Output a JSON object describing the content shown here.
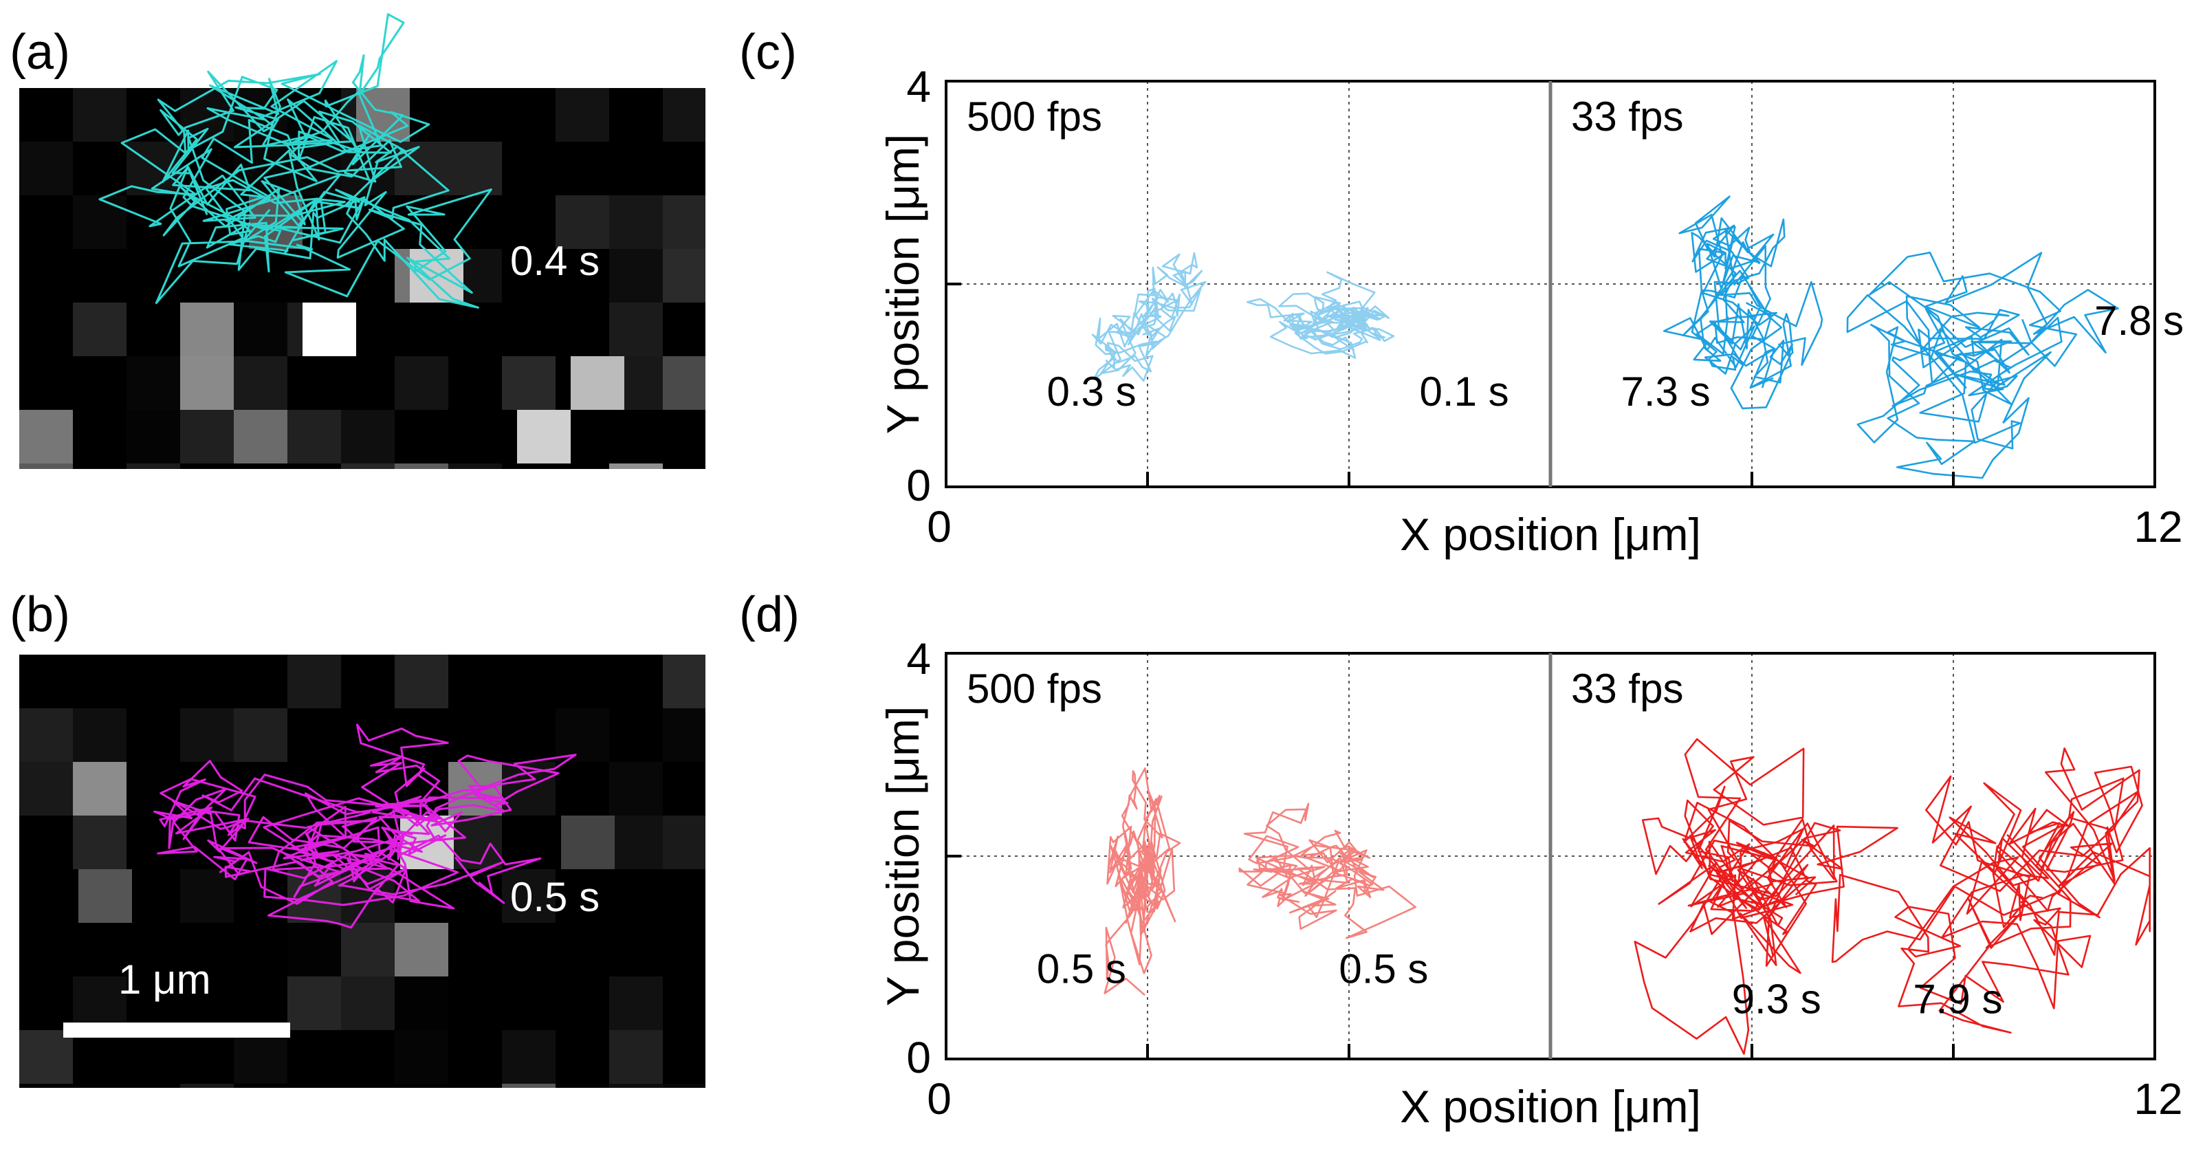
{
  "figure": {
    "panel_a": {
      "label": "(a)",
      "duration": "0.4 s",
      "track_color": "#2fd6d0"
    },
    "panel_b": {
      "label": "(b)",
      "duration": "0.5 s",
      "track_color": "#e020e0",
      "scale_bar": "1 μm"
    },
    "panel_c": {
      "label": "(c)"
    },
    "panel_d": {
      "label": "(d)"
    }
  },
  "chart_data": [
    {
      "panel": "c",
      "type": "line",
      "xlabel": "X position [μm]",
      "ylabel": "Y position [μm]",
      "xlim": [
        0,
        12
      ],
      "ylim": [
        0,
        4
      ],
      "x_ticks": [
        "0",
        "12"
      ],
      "y_ticks": [
        "0",
        "4"
      ],
      "grid": "dotted",
      "regions": [
        {
          "label": "500 fps",
          "x_range": [
            0,
            6
          ]
        },
        {
          "label": "33 fps",
          "x_range": [
            6,
            12
          ]
        }
      ],
      "series": [
        {
          "name": "0.3 s",
          "fps": 500,
          "color": "#8ecff0",
          "center": [
            2.0,
            1.65
          ],
          "spread": [
            0.55,
            0.6
          ],
          "steps": 140,
          "label_at": [
            1.0,
            0.8
          ]
        },
        {
          "name": "0.1 s",
          "fps": 500,
          "color": "#8ecff0",
          "center": [
            4.0,
            1.65
          ],
          "spread": [
            0.6,
            0.35
          ],
          "steps": 200,
          "label_at": [
            4.7,
            0.8
          ]
        },
        {
          "name": "7.3 s",
          "fps": 33,
          "color": "#1ea0e0",
          "center": [
            7.8,
            1.6
          ],
          "spread": [
            0.8,
            1.1
          ],
          "steps": 160,
          "label_at": [
            6.7,
            0.8
          ]
        },
        {
          "name": "7.8 s",
          "fps": 33,
          "color": "#1ea0e0",
          "center": [
            10.4,
            1.55
          ],
          "spread": [
            1.3,
            1.0
          ],
          "steps": 160,
          "label_at": [
            11.4,
            1.5
          ]
        }
      ]
    },
    {
      "panel": "d",
      "type": "line",
      "xlabel": "X position [μm]",
      "ylabel": "Y position [μm]",
      "xlim": [
        0,
        12
      ],
      "ylim": [
        0,
        4
      ],
      "x_ticks": [
        "0",
        "12"
      ],
      "y_ticks": [
        "0",
        "4"
      ],
      "grid": "dotted",
      "regions": [
        {
          "label": "500 fps",
          "x_range": [
            0,
            6
          ]
        },
        {
          "label": "33 fps",
          "x_range": [
            6,
            12
          ]
        }
      ],
      "series": [
        {
          "name": "0.5 s",
          "fps": 500,
          "color": "#f4827e",
          "center": [
            2.0,
            1.85
          ],
          "spread": [
            0.45,
            1.2
          ],
          "steps": 150,
          "label_at": [
            0.9,
            0.75
          ]
        },
        {
          "name": "0.5 s",
          "fps": 500,
          "color": "#f4827e",
          "center": [
            3.8,
            1.85
          ],
          "spread": [
            0.9,
            0.6
          ],
          "steps": 150,
          "label_at": [
            3.9,
            0.75
          ]
        },
        {
          "name": "9.3 s",
          "fps": 33,
          "color": "#ec1c1c",
          "center": [
            8.2,
            1.75
          ],
          "spread": [
            1.3,
            1.4
          ],
          "steps": 170,
          "label_at": [
            7.8,
            0.45
          ]
        },
        {
          "name": "7.9 s",
          "fps": 33,
          "color": "#ec1c1c",
          "center": [
            10.6,
            1.85
          ],
          "spread": [
            1.3,
            1.4
          ],
          "steps": 170,
          "label_at": [
            9.6,
            0.45
          ]
        }
      ]
    }
  ]
}
